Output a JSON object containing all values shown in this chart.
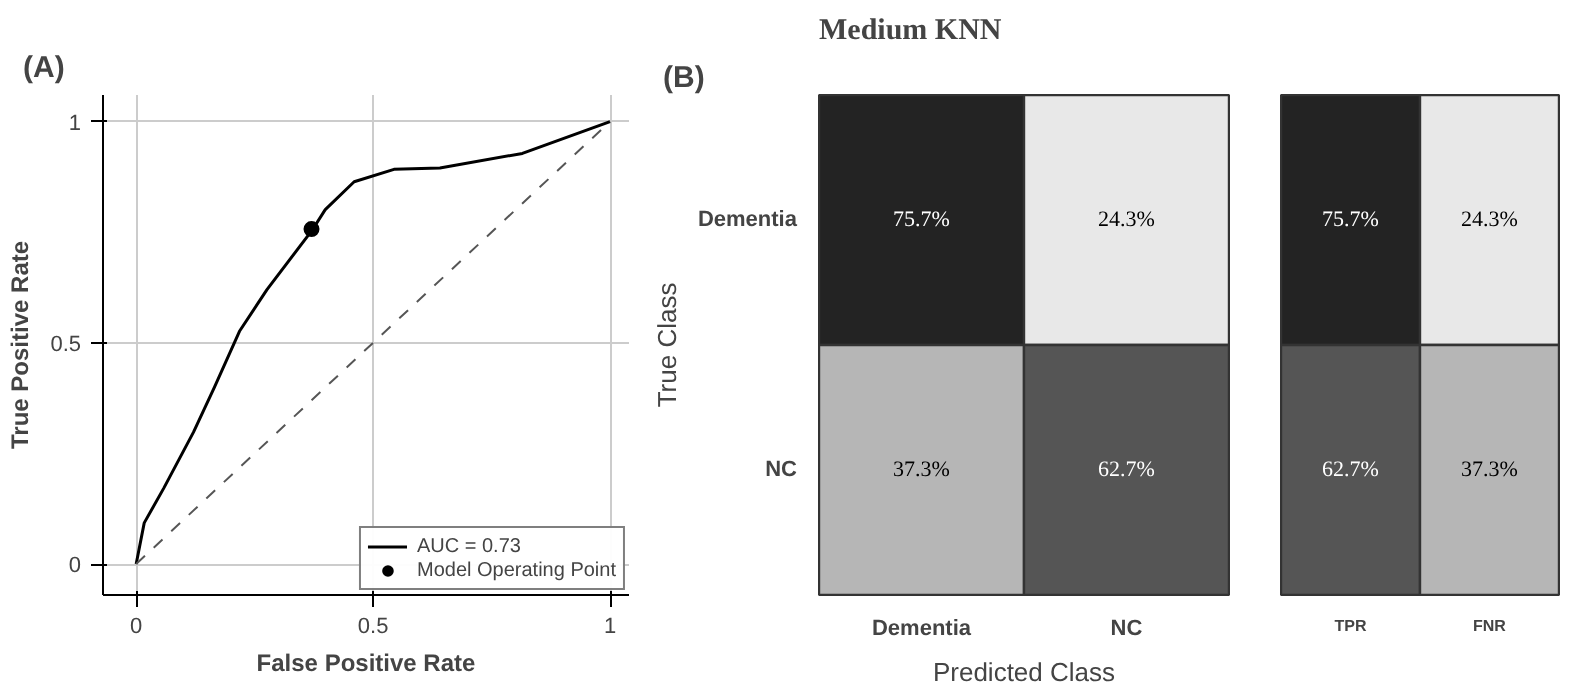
{
  "chart_data": [
    {
      "type": "line",
      "title": "(A)",
      "xlabel": "False Positive Rate",
      "ylabel": "True Positive Rate",
      "series": [
        {
          "name": "AUC = 0.73",
          "type": "line",
          "color": "#000000",
          "line_style": "solid",
          "x": [
            0,
            0.017,
            0.058,
            0.121,
            0.165,
            0.218,
            0.276,
            0.373,
            0.399,
            0.46,
            0.544,
            0.641,
            0.815,
            1
          ],
          "values": [
            0,
            0.093,
            0.171,
            0.298,
            0.399,
            0.526,
            0.62,
            0.757,
            0.801,
            0.864,
            0.892,
            0.895,
            0.928,
            1
          ]
        },
        {
          "type": "line",
          "color": "#555555",
          "line_style": "dashed",
          "x": [
            0,
            1
          ],
          "values": [
            0,
            1
          ]
        },
        {
          "name": "Model Operating Point",
          "type": "scatter",
          "marker": "circle",
          "color": "#000000",
          "x": [
            0.37
          ],
          "values": [
            0.757
          ]
        }
      ],
      "xlim": [
        -0.07,
        1.04
      ],
      "ylim": [
        -0.07,
        1.06
      ],
      "xticks": [
        0,
        0.5,
        1
      ],
      "yticks": [
        0,
        0.5,
        1
      ],
      "grid": true,
      "legend": "bottom right"
    },
    {
      "type": "heatmap",
      "title": "Medium KNN",
      "annotations": [
        "(B)"
      ],
      "xlabel": "Predicted Class",
      "ylabel": "True Class",
      "categories": [
        "Dementia",
        "NC"
      ],
      "y_categories": [
        "Dementia",
        "NC"
      ],
      "cells": [
        [
          75.7,
          24.3
        ],
        [
          37.3,
          62.7
        ]
      ],
      "cell_labels": [
        [
          "75.7%",
          "24.3%"
        ],
        [
          "37.3%",
          "62.7%"
        ]
      ]
    },
    {
      "type": "heatmap",
      "categories": [
        "TPR",
        "FNR"
      ],
      "y_categories": [
        null,
        null
      ],
      "tick_labels": "x",
      "cells": [
        [
          75.7,
          24.3
        ],
        [
          62.7,
          37.3
        ]
      ],
      "cell_labels": [
        [
          "75.7%",
          "24.3%"
        ],
        [
          "62.7%",
          "37.3%"
        ]
      ]
    }
  ]
}
